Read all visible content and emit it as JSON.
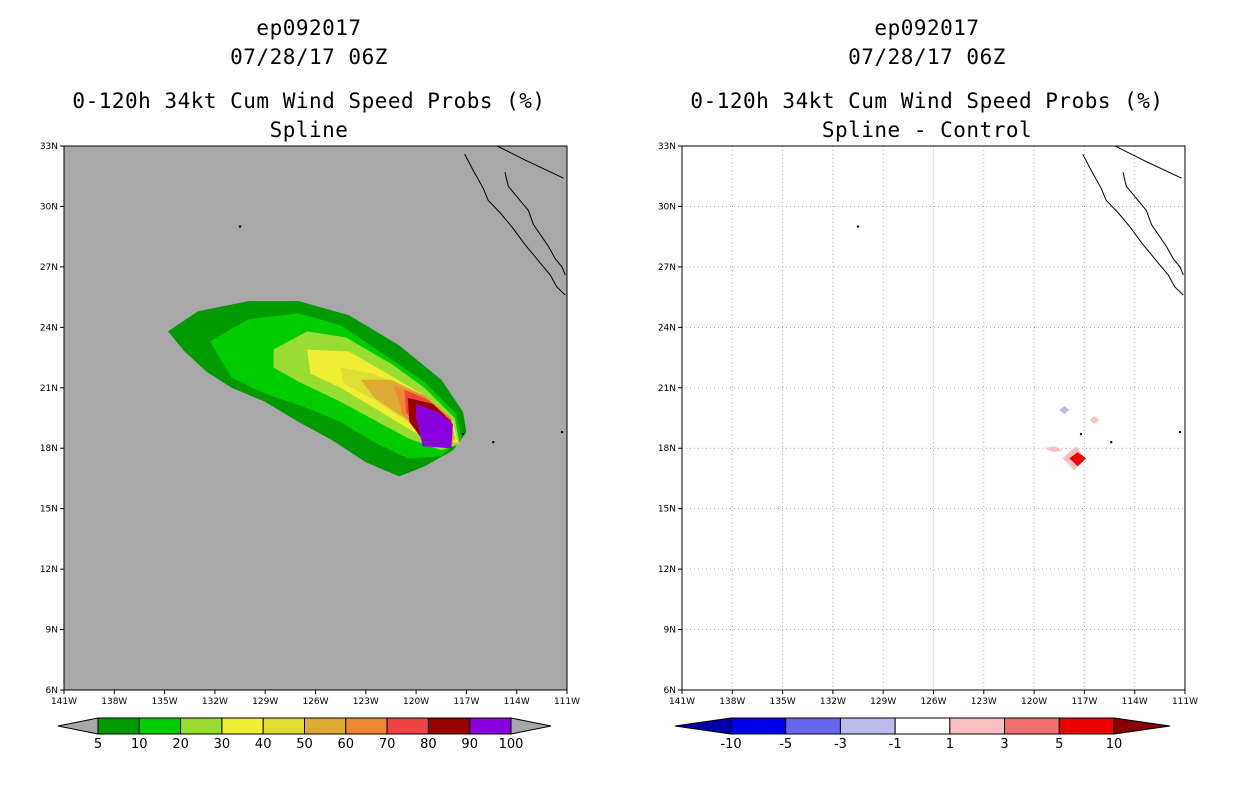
{
  "chart_data": [
    {
      "type": "heatmap",
      "title_lines": [
        "ep092017",
        "07/28/17 06Z",
        "0-120h 34kt Cum Wind Speed Probs (%)",
        "Spline"
      ],
      "x_ticks": [
        "141W",
        "138W",
        "135W",
        "132W",
        "129W",
        "126W",
        "123W",
        "120W",
        "117W",
        "114W",
        "111W"
      ],
      "y_ticks": [
        "33N",
        "30N",
        "27N",
        "24N",
        "21N",
        "18N",
        "15N",
        "12N",
        "9N",
        "6N"
      ],
      "xlim": [
        -141,
        -111
      ],
      "ylim": [
        6,
        33
      ],
      "grid": false,
      "background": "#a8a8a8",
      "colorbar": {
        "levels": [
          "5",
          "10",
          "20",
          "30",
          "40",
          "50",
          "60",
          "70",
          "80",
          "90",
          "100"
        ],
        "colors": [
          "#009900",
          "#00cc00",
          "#99dd33",
          "#eeee33",
          "#dddd33",
          "#ddaa33",
          "#ee8833",
          "#ee4444",
          "#990000",
          "#8800dd"
        ]
      },
      "contour_levels": [
        {
          "value": 5,
          "color": "#009900",
          "points": [
            [
              -134.8,
              23.8
            ],
            [
              -133,
              24.8
            ],
            [
              -130,
              25.3
            ],
            [
              -127,
              25.3
            ],
            [
              -124,
              24.6
            ],
            [
              -121,
              23.1
            ],
            [
              -118.5,
              21.4
            ],
            [
              -117.2,
              19.8
            ],
            [
              -117,
              18.8
            ],
            [
              -117.8,
              17.9
            ],
            [
              -119.5,
              17.1
            ],
            [
              -121,
              16.6
            ],
            [
              -123,
              17.3
            ],
            [
              -125,
              18.4
            ],
            [
              -127,
              19.3
            ],
            [
              -129,
              20.3
            ],
            [
              -131,
              21
            ],
            [
              -132.5,
              21.8
            ],
            [
              -133.8,
              22.8
            ]
          ]
        },
        {
          "value": 10,
          "color": "#00cc00",
          "points": [
            [
              -132.3,
              23.3
            ],
            [
              -130,
              24.4
            ],
            [
              -127,
              24.7
            ],
            [
              -124.5,
              24.1
            ],
            [
              -122,
              22.7
            ],
            [
              -119.5,
              21.3
            ],
            [
              -117.6,
              19.7
            ],
            [
              -117.3,
              18.5
            ],
            [
              -118.5,
              17.6
            ],
            [
              -120.5,
              17.5
            ],
            [
              -122.5,
              18.3
            ],
            [
              -124.5,
              19.3
            ],
            [
              -126.5,
              20
            ],
            [
              -129,
              20.7
            ],
            [
              -131,
              21.5
            ]
          ]
        },
        {
          "value": 20,
          "color": "#99dd33",
          "points": [
            [
              -128.5,
              22.9
            ],
            [
              -126.5,
              23.8
            ],
            [
              -124.2,
              23.5
            ],
            [
              -121.5,
              22.2
            ],
            [
              -119.5,
              21
            ],
            [
              -117.7,
              19.5
            ],
            [
              -117.4,
              18.2
            ],
            [
              -118.5,
              17.9
            ],
            [
              -120.5,
              18.5
            ],
            [
              -122.5,
              19.4
            ],
            [
              -124.5,
              20.3
            ],
            [
              -127,
              21.3
            ],
            [
              -128.5,
              22
            ]
          ]
        },
        {
          "value": 30,
          "color": "#eeee33",
          "points": [
            [
              -126.5,
              22.9
            ],
            [
              -124,
              22.8
            ],
            [
              -121.5,
              21.6
            ],
            [
              -119.5,
              20.6
            ],
            [
              -117.8,
              19.3
            ],
            [
              -117.5,
              18.3
            ],
            [
              -118.8,
              18.2
            ],
            [
              -120.5,
              19
            ],
            [
              -122.5,
              20
            ],
            [
              -124.5,
              21
            ],
            [
              -126.3,
              21.7
            ]
          ]
        },
        {
          "value": 40,
          "color": "#dddd33",
          "points": [
            [
              -124.5,
              22
            ],
            [
              -122.5,
              21.7
            ],
            [
              -120.5,
              20.9
            ],
            [
              -118.5,
              19.8
            ],
            [
              -117.6,
              18.5
            ],
            [
              -118.8,
              18.3
            ],
            [
              -120.5,
              19.3
            ],
            [
              -122.5,
              20.4
            ],
            [
              -124.3,
              21.2
            ]
          ]
        },
        {
          "value": 50,
          "color": "#ddaa33",
          "points": [
            [
              -123.3,
              21.4
            ],
            [
              -121.5,
              21.4
            ],
            [
              -119.5,
              20.6
            ],
            [
              -117.9,
              19.5
            ],
            [
              -117.7,
              18.4
            ],
            [
              -119,
              18.5
            ],
            [
              -120.5,
              19.4
            ],
            [
              -122.5,
              20.5
            ]
          ]
        },
        {
          "value": 60,
          "color": "#ee8833",
          "points": [
            [
              -121.3,
              21.1
            ],
            [
              -119.5,
              20.6
            ],
            [
              -117.9,
              19.5
            ],
            [
              -117.8,
              18.2
            ],
            [
              -119.5,
              18.6
            ],
            [
              -120.8,
              19.7
            ]
          ]
        },
        {
          "value": 70,
          "color": "#ee4444",
          "points": [
            [
              -120.7,
              20.9
            ],
            [
              -119.3,
              20.4
            ],
            [
              -117.9,
              19.4
            ],
            [
              -117.9,
              18.1
            ],
            [
              -119.7,
              18.7
            ],
            [
              -120.6,
              19.8
            ]
          ]
        },
        {
          "value": 80,
          "color": "#990000",
          "points": [
            [
              -120.5,
              20.5
            ],
            [
              -119,
              20.2
            ],
            [
              -117.9,
              19.3
            ],
            [
              -118,
              18
            ],
            [
              -119.5,
              18.3
            ],
            [
              -120.4,
              19.3
            ]
          ]
        },
        {
          "value": 90,
          "color": "#8800dd",
          "points": [
            [
              -120,
              20.2
            ],
            [
              -118.7,
              19.8
            ],
            [
              -117.8,
              19.2
            ],
            [
              -117.9,
              18
            ],
            [
              -119.6,
              18.1
            ],
            [
              -120,
              19.5
            ]
          ]
        }
      ]
    },
    {
      "type": "heatmap",
      "title_lines": [
        "ep092017",
        "07/28/17 06Z",
        "0-120h 34kt Cum Wind Speed Probs (%)",
        "Spline - Control"
      ],
      "x_ticks": [
        "141W",
        "138W",
        "135W",
        "132W",
        "129W",
        "126W",
        "123W",
        "120W",
        "117W",
        "114W",
        "111W"
      ],
      "y_ticks": [
        "33N",
        "30N",
        "27N",
        "24N",
        "21N",
        "18N",
        "15N",
        "12N",
        "9N",
        "6N"
      ],
      "xlim": [
        -141,
        -111
      ],
      "ylim": [
        6,
        33
      ],
      "grid": true,
      "background": "#ffffff",
      "colorbar": {
        "levels": [
          "-10",
          "-5",
          "-3",
          "-1",
          "1",
          "3",
          "5",
          "10"
        ],
        "colors": [
          "#0000aa",
          "#0000ee",
          "#6666ee",
          "#bbbbee",
          "#ffffff",
          "#f8c0c0",
          "#f07070",
          "#ee0000",
          "#880000"
        ]
      },
      "features": [
        {
          "value": -2,
          "color": "#bbbbee",
          "points": [
            [
              -118.2,
              20.1
            ],
            [
              -117.9,
              19.9
            ],
            [
              -118.2,
              19.7
            ],
            [
              -118.5,
              19.9
            ]
          ]
        },
        {
          "value": 2,
          "color": "#f8c0c0",
          "points": [
            [
              -116.4,
              19.6
            ],
            [
              -116.1,
              19.4
            ],
            [
              -116.4,
              19.2
            ],
            [
              -116.7,
              19.4
            ]
          ]
        },
        {
          "value": 2,
          "color": "#f8c0c0",
          "points": [
            [
              -118.8,
              18.1
            ],
            [
              -118.3,
              17.9
            ],
            [
              -118.8,
              17.8
            ],
            [
              -119.4,
              18
            ]
          ]
        },
        {
          "value": 3,
          "color": "#f8c0c0",
          "points": [
            [
              -117.5,
              18.1
            ],
            [
              -117.0,
              17.5
            ],
            [
              -117.6,
              16.9
            ],
            [
              -118.3,
              17.5
            ]
          ]
        },
        {
          "value": 6,
          "color": "#ee0000",
          "points": [
            [
              -117.4,
              17.8
            ],
            [
              -116.9,
              17.5
            ],
            [
              -117.4,
              17.1
            ],
            [
              -117.9,
              17.5
            ]
          ]
        }
      ]
    }
  ]
}
